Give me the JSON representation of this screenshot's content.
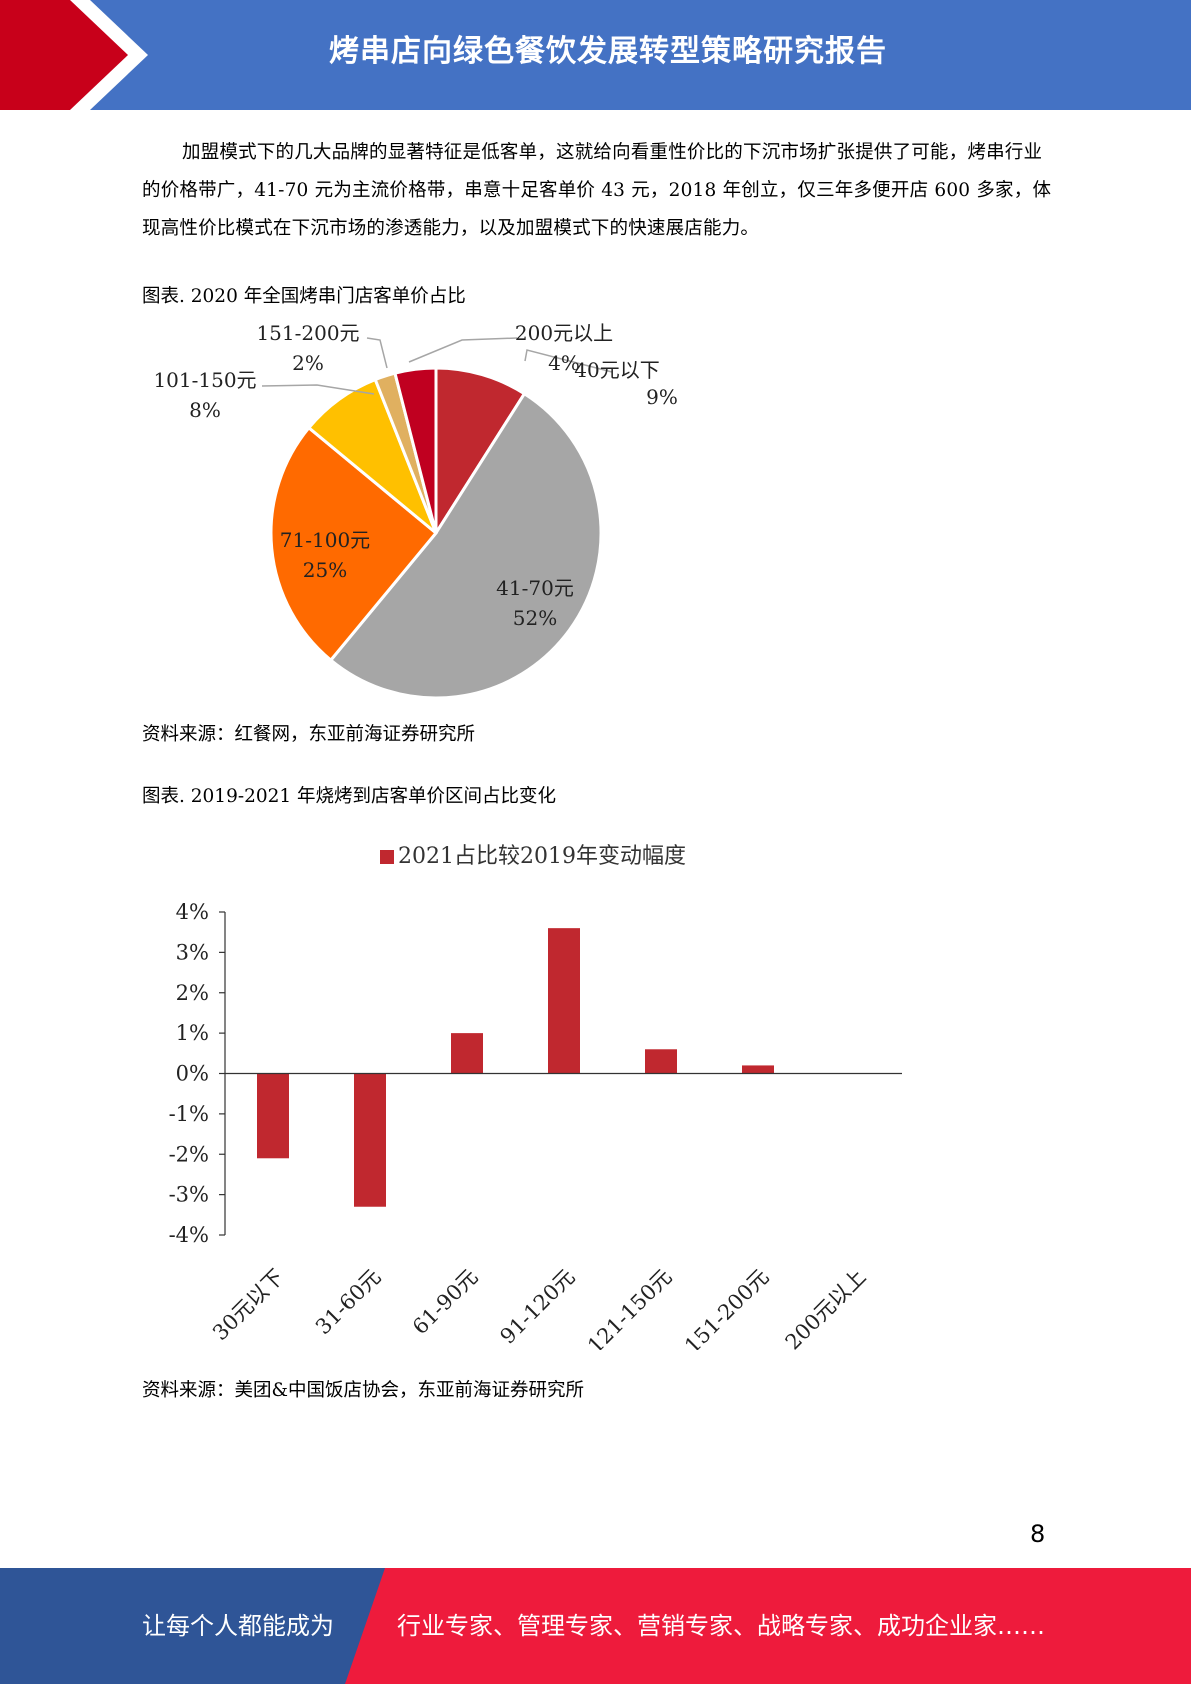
{
  "header": {
    "title": "烤串店向绿色餐饮发展转型策略研究报告",
    "colors": {
      "red": "#c8001a",
      "blue": "#4472c4"
    }
  },
  "body_text": "加盟模式下的几大品牌的显著特征是低客单，这就给向看重性价比的下沉市场扩张提供了可能，烤串行业的价格带广，41-70 元为主流价格带，串意十足客单价 43 元，2018 年创立，仅三年多便开店 600 多家，体现高性价比模式在下沉市场的渗透能力，以及加盟模式下的快速展店能力。",
  "figure1": {
    "caption": "图表. 2020  年全国烤串门店客单价占比",
    "source": "资料来源：红餐网，东亚前海证券研究所"
  },
  "figure2": {
    "caption": "图表. 2019-2021  年烧烤到店客单价区间占比变化",
    "source": "资料来源：美团&中国饭店协会，东亚前海证券研究所"
  },
  "chart_data": [
    {
      "type": "pie",
      "title": "",
      "slices": [
        {
          "label": "40元以下",
          "value": 9,
          "pct_label": "9%",
          "color": "#c0282f"
        },
        {
          "label": "41-70元",
          "value": 52,
          "pct_label": "52%",
          "color": "#a6a6a6"
        },
        {
          "label": "71-100元",
          "value": 25,
          "pct_label": "25%",
          "color": "#ff6a00"
        },
        {
          "label": "101-150元",
          "value": 8,
          "pct_label": "8%",
          "color": "#ffc000"
        },
        {
          "label": "151-200元",
          "value": 2,
          "pct_label": "2%",
          "color": "#e0b060"
        },
        {
          "label": "200元以上",
          "value": 4,
          "pct_label": "4%",
          "color": "#c00020"
        }
      ],
      "start": "12 o'clock, clockwise"
    },
    {
      "type": "bar",
      "legend": "2021占比较2019年变动幅度",
      "legend_position": "top",
      "categories": [
        "30元以下",
        "31-60元",
        "61-90元",
        "91-120元",
        "121-150元",
        "151-200元",
        "200元以上"
      ],
      "values": [
        -2.1,
        -3.3,
        1.0,
        3.6,
        0.6,
        0.2,
        0
      ],
      "y_unit": "%",
      "ylim": [
        -4,
        4
      ],
      "y_ticks": [
        "4%",
        "3%",
        "2%",
        "1%",
        "0%",
        "-1%",
        "-2%",
        "-3%",
        "-4%"
      ],
      "bar_color": "#c0282f",
      "grid": false
    }
  ],
  "page_number": "8",
  "footer": {
    "left": "让每个人都能成为",
    "right": "行业专家、管理专家、营销专家、战略专家、成功企业家……"
  }
}
